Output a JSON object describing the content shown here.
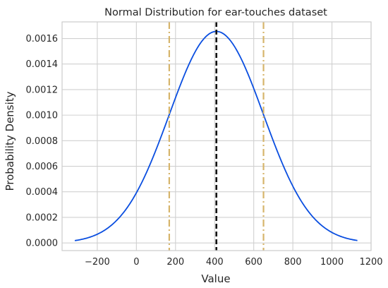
{
  "chart_data": {
    "type": "line",
    "title": "Normal Distribution for ear-touches dataset",
    "xlabel": "Value",
    "ylabel": "Probability Density",
    "xlim": [
      -380,
      1200
    ],
    "ylim": [
      -6e-05,
      0.00173
    ],
    "x_ticks": [
      -200,
      0,
      200,
      400,
      600,
      800,
      1000,
      1200
    ],
    "x_tick_labels": [
      "−200",
      "0",
      "200",
      "400",
      "600",
      "800",
      "1000",
      "1200"
    ],
    "y_ticks": [
      0.0,
      0.0002,
      0.0004,
      0.0006,
      0.0008,
      0.001,
      0.0012,
      0.0014,
      0.0016
    ],
    "y_tick_labels": [
      "0.0000",
      "0.0002",
      "0.0004",
      "0.0006",
      "0.0008",
      "0.0010",
      "0.0012",
      "0.0014",
      "0.0016"
    ],
    "grid": true,
    "curve": {
      "kind": "normal-pdf",
      "mean": 409,
      "std": 241,
      "x_range": [
        -315,
        1130
      ],
      "color": "#0a4ee0"
    },
    "vlines": [
      {
        "x": 409,
        "color": "#111111",
        "style": "dashed"
      },
      {
        "x": 168,
        "color": "#d6b56b",
        "style": "dashdot"
      },
      {
        "x": 650,
        "color": "#d6b56b",
        "style": "dashdot"
      }
    ],
    "colors": {
      "grid": "#d0d0d0",
      "spine": "#cccccc",
      "text": "#262626"
    }
  }
}
